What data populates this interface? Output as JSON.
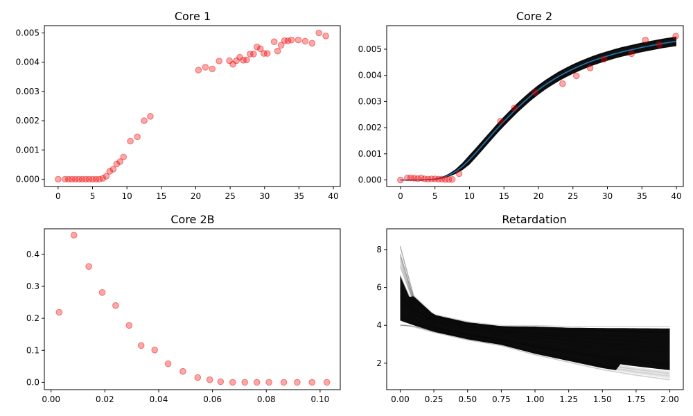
{
  "chart_data": [
    {
      "type": "scatter",
      "title": "Core 1",
      "xlabel": "",
      "ylabel": "",
      "xlim": [
        -2,
        41
      ],
      "ylim": [
        -0.00025,
        0.00525
      ],
      "xticks": [
        0,
        5,
        10,
        15,
        20,
        25,
        30,
        35,
        40
      ],
      "xtick_labels": [
        "0",
        "5",
        "10",
        "15",
        "20",
        "25",
        "30",
        "35",
        "40"
      ],
      "yticks": [
        0,
        0.001,
        0.002,
        0.003,
        0.004,
        0.005
      ],
      "ytick_labels": [
        "0.000",
        "0.001",
        "0.002",
        "0.003",
        "0.004",
        "0.005"
      ],
      "marker_color": "#ff0000",
      "points": {
        "x": [
          0,
          1,
          1.5,
          2,
          2.5,
          3,
          3.5,
          4,
          4.5,
          5,
          5.5,
          6,
          6.5,
          7,
          7.5,
          8,
          8.5,
          9,
          9.5,
          10.5,
          11.5,
          12.5,
          13.4,
          20.4,
          21.4,
          22.4,
          23.4,
          24.9,
          25.4,
          25.9,
          26.4,
          26.9,
          27.4,
          27.9,
          28.4,
          28.9,
          29.4,
          29.9,
          30.4,
          31.4,
          31.9,
          32.4,
          32.9,
          33.4,
          33.9,
          34.9,
          35.9,
          36.9,
          37.9,
          38.9
        ],
        "y": [
          0,
          0,
          0,
          0,
          0,
          0,
          0,
          0,
          0,
          0,
          0,
          0,
          3e-05,
          0.0001,
          0.00027,
          0.00034,
          0.00052,
          0.0006,
          0.00076,
          0.0013,
          0.00145,
          0.002,
          0.00215,
          0.00373,
          0.00383,
          0.00377,
          0.00404,
          0.00405,
          0.00393,
          0.00405,
          0.00417,
          0.00407,
          0.00408,
          0.00428,
          0.00428,
          0.00452,
          0.00446,
          0.0043,
          0.0043,
          0.0047,
          0.00438,
          0.00458,
          0.00474,
          0.00473,
          0.00476,
          0.00476,
          0.00472,
          0.00465,
          0.005,
          0.0049
        ]
      }
    },
    {
      "type": "scatter",
      "title": "Core 2",
      "xlabel": "",
      "ylabel": "",
      "xlim": [
        -2,
        41
      ],
      "ylim": [
        -0.00025,
        0.0059
      ],
      "xticks": [
        0,
        5,
        10,
        15,
        20,
        25,
        30,
        35,
        40
      ],
      "xtick_labels": [
        "0",
        "5",
        "10",
        "15",
        "20",
        "25",
        "30",
        "35",
        "40"
      ],
      "yticks": [
        0,
        0.001,
        0.002,
        0.003,
        0.004,
        0.005
      ],
      "ytick_labels": [
        "0.000",
        "0.001",
        "0.002",
        "0.003",
        "0.004",
        "0.005"
      ],
      "marker_color": "#ff0000",
      "band_color": "#000000",
      "fit_color": "#1f77b4",
      "points": {
        "x": [
          0,
          1,
          1.5,
          2,
          2.5,
          3,
          3.5,
          4,
          4.5,
          5,
          5.5,
          6,
          6.5,
          7,
          7.5,
          8.5,
          14.5,
          16.5,
          19.5,
          23.5,
          25.5,
          27.5,
          29.5,
          33.5,
          35.5,
          37.5,
          39.9
        ],
        "y": [
          0,
          8e-05,
          8e-05,
          7e-05,
          5e-05,
          8e-05,
          4e-05,
          3e-05,
          4e-05,
          4e-05,
          3e-05,
          3e-05,
          2e-05,
          2e-05,
          2e-05,
          0.00024,
          0.00225,
          0.00275,
          0.00335,
          0.00368,
          0.00398,
          0.00428,
          0.00462,
          0.00483,
          0.00535,
          0.00518,
          0.0055
        ]
      },
      "fit": {
        "x": [
          0,
          1,
          2,
          3,
          4,
          5,
          6,
          7,
          8,
          9,
          10,
          11,
          12,
          13,
          14,
          15,
          16,
          17,
          18,
          19,
          20,
          21,
          22,
          23,
          24,
          25,
          26,
          27,
          28,
          29,
          30,
          31,
          32,
          33,
          34,
          35,
          36,
          37,
          38,
          39,
          40
        ],
        "y": [
          0,
          0,
          0,
          0,
          1e-05,
          3e-05,
          8e-05,
          0.00018,
          0.00032,
          0.00052,
          0.00077,
          0.00106,
          0.00136,
          0.00166,
          0.00196,
          0.00224,
          0.00251,
          0.00277,
          0.00301,
          0.00324,
          0.00345,
          0.00364,
          0.00381,
          0.00397,
          0.00411,
          0.00424,
          0.00436,
          0.00447,
          0.00457,
          0.00466,
          0.00474,
          0.00482,
          0.00489,
          0.00495,
          0.00501,
          0.00507,
          0.00512,
          0.00517,
          0.00522,
          0.00526,
          0.0053
        ]
      },
      "band_halfwidth": 0.00018
    },
    {
      "type": "scatter",
      "title": "Core 2B",
      "xlabel": "",
      "ylabel": "",
      "xlim": [
        -0.0025,
        0.1075
      ],
      "ylim": [
        -0.023,
        0.48
      ],
      "xticks": [
        0,
        0.02,
        0.04,
        0.06,
        0.08,
        0.1
      ],
      "xtick_labels": [
        "0.00",
        "0.02",
        "0.04",
        "0.06",
        "0.08",
        "0.10"
      ],
      "yticks": [
        0,
        0.1,
        0.2,
        0.3,
        0.4
      ],
      "ytick_labels": [
        "0.0",
        "0.1",
        "0.2",
        "0.3",
        "0.4"
      ],
      "marker_color": "#ff0000",
      "points": {
        "x": [
          0.003,
          0.0085,
          0.014,
          0.019,
          0.024,
          0.029,
          0.0335,
          0.0385,
          0.0435,
          0.049,
          0.0545,
          0.059,
          0.063,
          0.0675,
          0.072,
          0.0765,
          0.081,
          0.0865,
          0.0915,
          0.097,
          0.1025
        ],
        "y": [
          0.219,
          0.46,
          0.362,
          0.281,
          0.24,
          0.178,
          0.115,
          0.101,
          0.058,
          0.034,
          0.015,
          0.008,
          0.002,
          0,
          0,
          0,
          0,
          0,
          0,
          0,
          0
        ]
      }
    },
    {
      "type": "line",
      "title": "Retardation",
      "xlabel": "",
      "ylabel": "",
      "xlim": [
        -0.1,
        2.1
      ],
      "ylim": [
        0.6,
        9.1
      ],
      "xticks": [
        0,
        0.25,
        0.5,
        0.75,
        1,
        1.25,
        1.5,
        1.75,
        2
      ],
      "xtick_labels": [
        "0.00",
        "0.25",
        "0.50",
        "0.75",
        "1.00",
        "1.25",
        "1.50",
        "1.75",
        "2.00"
      ],
      "yticks": [
        2,
        4,
        6,
        8
      ],
      "ytick_labels": [
        "2",
        "4",
        "6",
        "8"
      ],
      "band_color": "#000000",
      "envelope": {
        "x": [
          0,
          0.1,
          0.25,
          0.5,
          0.75,
          1,
          1.25,
          1.5,
          1.75,
          2
        ],
        "upper": [
          8.2,
          5.6,
          4.6,
          4.2,
          4.0,
          4.0,
          3.95,
          3.95,
          3.95,
          3.95
        ],
        "lower": [
          4.0,
          3.9,
          3.6,
          3.2,
          2.9,
          2.4,
          2.0,
          1.6,
          1.3,
          1.05
        ]
      }
    }
  ]
}
